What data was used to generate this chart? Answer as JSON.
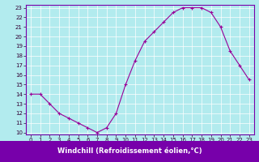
{
  "x": [
    0,
    1,
    2,
    3,
    4,
    5,
    6,
    7,
    8,
    9,
    10,
    11,
    12,
    13,
    14,
    15,
    16,
    17,
    18,
    19,
    20,
    21,
    22,
    23
  ],
  "y": [
    14,
    14,
    13,
    12,
    11.5,
    11,
    10.5,
    10,
    10.5,
    12,
    15,
    17.5,
    19.5,
    20.5,
    21.5,
    22.5,
    23,
    23,
    23,
    22.5,
    21,
    18.5,
    17,
    15.5
  ],
  "line_color": "#990099",
  "marker": "+",
  "marker_size": 3,
  "bg_color": "#b2ebee",
  "grid_color": "#ffffff",
  "xlabel": "Windchill (Refroidissement éolien,°C)",
  "xlabel_color": "white",
  "xlabel_bg": "#7700aa",
  "spine_color": "#7700aa",
  "xlim": [
    -0.5,
    23.5
  ],
  "ylim_min": 9.8,
  "ylim_max": 23.3,
  "yticks": [
    10,
    11,
    12,
    13,
    14,
    15,
    16,
    17,
    18,
    19,
    20,
    21,
    22,
    23
  ],
  "xticks": [
    0,
    1,
    2,
    3,
    4,
    5,
    6,
    7,
    8,
    9,
    10,
    11,
    12,
    13,
    14,
    15,
    16,
    17,
    18,
    19,
    20,
    21,
    22,
    23
  ],
  "tick_fontsize": 5.0,
  "xlabel_fontsize": 6.0,
  "tick_color": "#330033",
  "linewidth": 0.8,
  "markeredgewidth": 0.8
}
